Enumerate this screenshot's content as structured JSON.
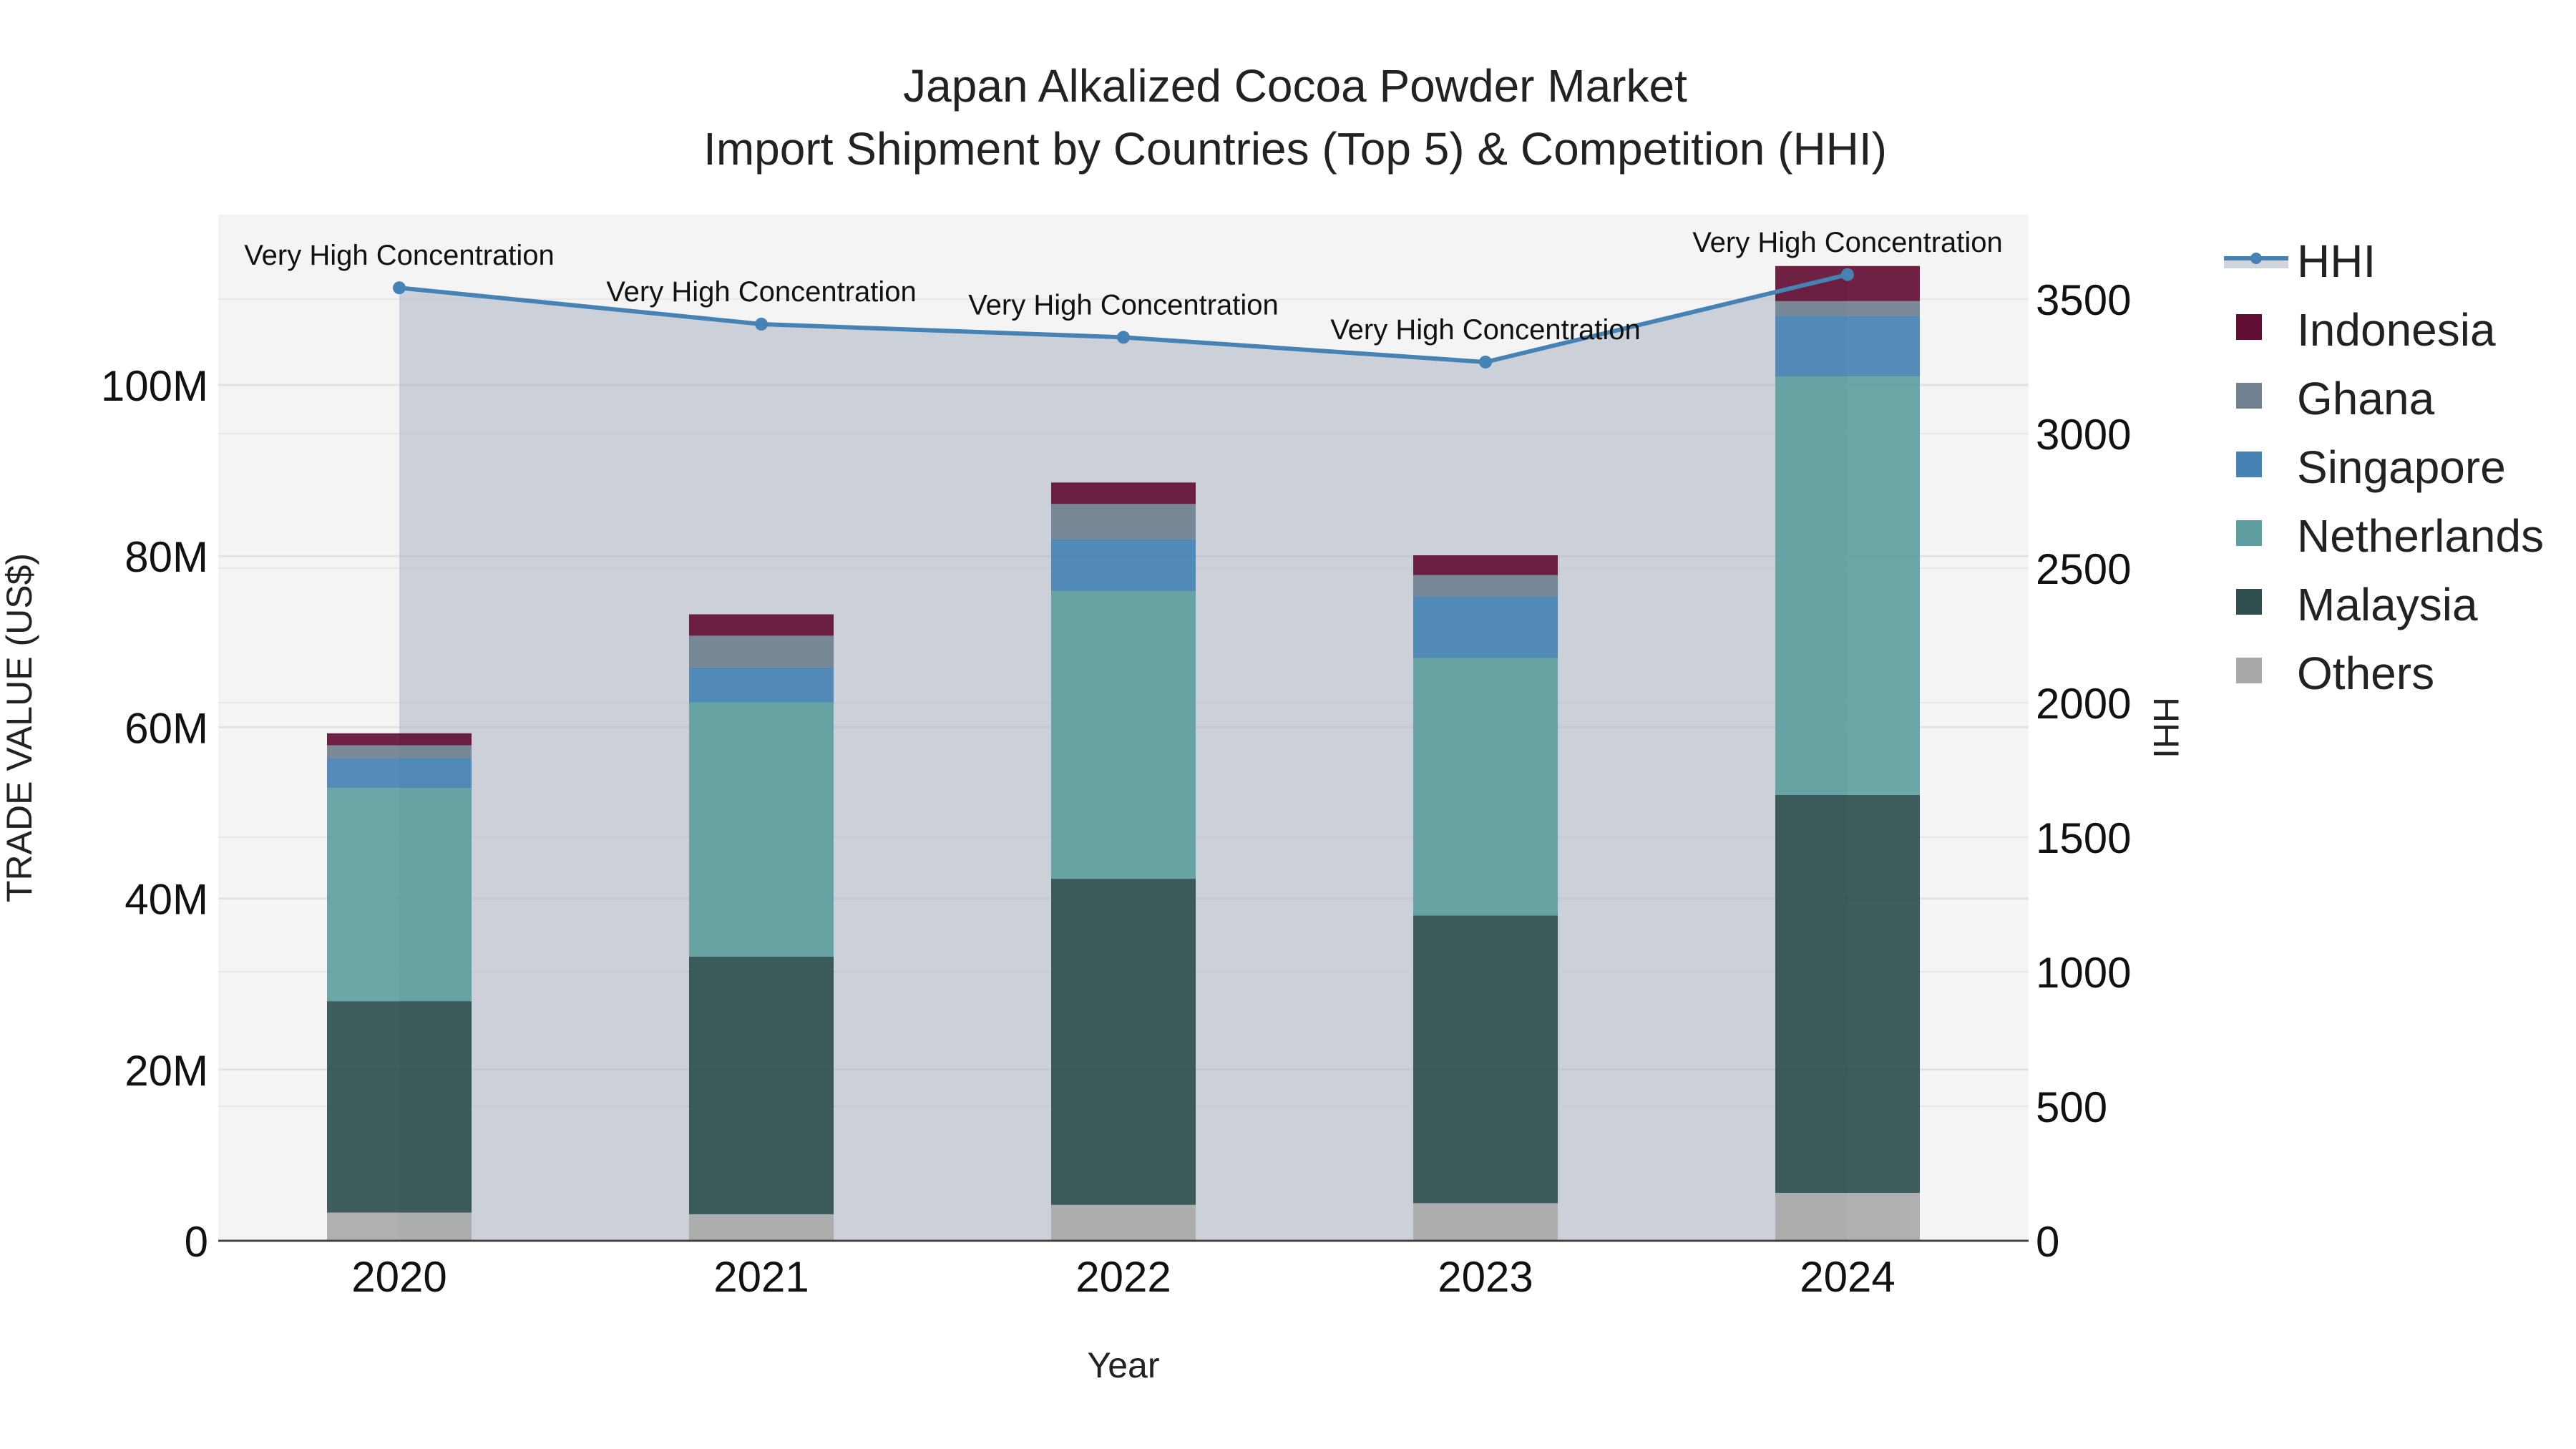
{
  "chart_data": {
    "type": "bar",
    "stacked": true,
    "title": "Japan Alkalized Cocoa Powder Market",
    "subtitle": "Import Shipment by Countries (Top 5) & Competition (HHI)",
    "xlabel": "Year",
    "ylabel": "TRADE VALUE (US$)",
    "y2label": "HHI",
    "categories": [
      "2020",
      "2021",
      "2022",
      "2023",
      "2024"
    ],
    "ylim": [
      0,
      120000000
    ],
    "y2lim": [
      0,
      3800
    ],
    "yticks": [
      0,
      20000000,
      40000000,
      60000000,
      80000000,
      100000000
    ],
    "ytick_labels": [
      "0",
      "20M",
      "40M",
      "60M",
      "80M",
      "100M"
    ],
    "y2ticks": [
      0,
      500,
      1000,
      1500,
      2000,
      2500,
      3000,
      3500
    ],
    "y2tick_labels": [
      "0",
      "500",
      "1000",
      "1500",
      "2000",
      "2500",
      "3000",
      "3500"
    ],
    "grid": true,
    "legend_position": "right",
    "series": [
      {
        "name": "Others",
        "color": "#a9a9a9",
        "values": [
          3300000,
          3100000,
          4200000,
          4400000,
          5600000
        ]
      },
      {
        "name": "Malaysia",
        "color": "#2f4f4f",
        "values": [
          24700000,
          30100000,
          38100000,
          33600000,
          46500000
        ]
      },
      {
        "name": "Netherlands",
        "color": "#5f9ea0",
        "values": [
          24900000,
          29700000,
          33600000,
          30100000,
          48900000
        ]
      },
      {
        "name": "Singapore",
        "color": "#4682b4",
        "values": [
          3500000,
          4100000,
          6100000,
          7200000,
          7100000
        ]
      },
      {
        "name": "Ghana",
        "color": "#708090",
        "values": [
          1500000,
          3700000,
          4100000,
          2500000,
          1700000
        ]
      },
      {
        "name": "Indonesia",
        "color": "#630f33",
        "values": [
          1400000,
          2500000,
          2500000,
          2300000,
          4100000
        ]
      }
    ],
    "line_series": {
      "name": "HHI",
      "axis": "y2",
      "color": "#4682b4",
      "fill_color": "#b0b8c6",
      "values": [
        3542,
        3407,
        3358,
        3266,
        3591
      ],
      "annotations": [
        "Very High Concentration",
        "Very High Concentration",
        "Very High Concentration",
        "Very High Concentration",
        "Very High Concentration"
      ]
    },
    "legend_order": [
      "HHI",
      "Indonesia",
      "Ghana",
      "Singapore",
      "Netherlands",
      "Malaysia",
      "Others"
    ]
  }
}
